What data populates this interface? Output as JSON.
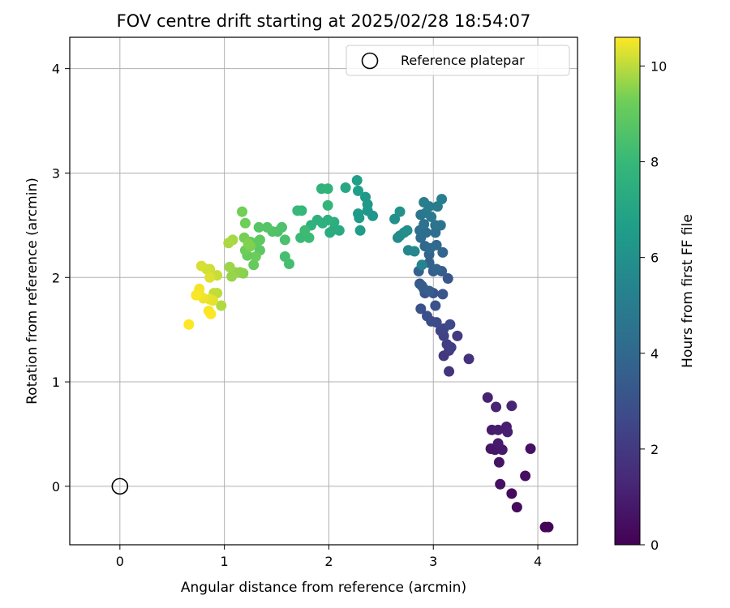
{
  "chart_data": {
    "type": "scatter",
    "title": "FOV centre drift starting at 2025/02/28 18:54:07",
    "xlabel": "Angular distance from reference (arcmin)",
    "ylabel": "Rotation from reference (arcmin)",
    "xlim": [
      -0.48,
      4.38
    ],
    "ylim": [
      -0.56,
      4.3
    ],
    "xticks": [
      0,
      1,
      2,
      3,
      4
    ],
    "yticks": [
      0,
      1,
      2,
      3,
      4
    ],
    "grid": true,
    "legend": {
      "placement": "top-right",
      "label": "Reference platepar"
    },
    "reference_point": {
      "x": 0,
      "y": 0
    },
    "colorbar": {
      "label": "Hours from first FF file",
      "range": [
        0,
        10.6
      ],
      "ticks": [
        0,
        2,
        4,
        6,
        8,
        10
      ],
      "colormap": "viridis"
    },
    "points": [
      [
        4.07,
        -0.39,
        0.1
      ],
      [
        4.1,
        -0.39,
        0.15
      ],
      [
        3.8,
        -0.2,
        0.3
      ],
      [
        3.75,
        -0.07,
        0.35
      ],
      [
        3.88,
        0.1,
        0.45
      ],
      [
        3.64,
        0.02,
        0.5
      ],
      [
        3.93,
        0.36,
        0.55
      ],
      [
        3.63,
        0.23,
        0.6
      ],
      [
        3.55,
        0.36,
        0.7
      ],
      [
        3.59,
        0.35,
        0.75
      ],
      [
        3.66,
        0.35,
        0.8
      ],
      [
        3.62,
        0.41,
        0.85
      ],
      [
        3.56,
        0.54,
        0.9
      ],
      [
        3.62,
        0.54,
        0.95
      ],
      [
        3.7,
        0.57,
        1.0
      ],
      [
        3.71,
        0.52,
        1.05
      ],
      [
        3.52,
        0.85,
        1.1
      ],
      [
        3.6,
        0.76,
        1.2
      ],
      [
        3.75,
        0.77,
        1.25
      ],
      [
        3.34,
        1.22,
        1.7
      ],
      [
        3.15,
        1.1,
        1.8
      ],
      [
        3.1,
        1.25,
        1.9
      ],
      [
        3.23,
        1.44,
        2.0
      ],
      [
        3.15,
        1.3,
        2.05
      ],
      [
        3.13,
        1.36,
        2.1
      ],
      [
        3.17,
        1.33,
        2.2
      ],
      [
        3.1,
        1.44,
        2.3
      ],
      [
        3.07,
        1.49,
        2.4
      ],
      [
        3.1,
        1.51,
        2.5
      ],
      [
        3.16,
        1.55,
        2.6
      ],
      [
        3.03,
        1.57,
        2.7
      ],
      [
        2.98,
        1.58,
        2.8
      ],
      [
        2.94,
        1.63,
        2.85
      ],
      [
        2.88,
        1.7,
        2.9
      ],
      [
        3.02,
        1.73,
        3.0
      ],
      [
        2.92,
        1.85,
        3.05
      ],
      [
        3.0,
        1.85,
        3.1
      ],
      [
        3.09,
        1.84,
        3.15
      ],
      [
        3.14,
        1.99,
        3.2
      ],
      [
        2.87,
        1.94,
        3.3
      ],
      [
        2.89,
        1.92,
        3.4
      ],
      [
        2.91,
        1.89,
        3.45
      ],
      [
        2.96,
        1.87,
        3.5
      ],
      [
        3.08,
        2.06,
        3.55
      ],
      [
        3.0,
        2.06,
        3.6
      ],
      [
        2.86,
        2.06,
        3.7
      ],
      [
        2.96,
        2.14,
        3.75
      ],
      [
        3.03,
        2.08,
        3.8
      ],
      [
        2.96,
        2.22,
        3.85
      ],
      [
        3.09,
        2.24,
        3.9
      ],
      [
        3.03,
        2.31,
        4.0
      ],
      [
        2.92,
        2.3,
        4.05
      ],
      [
        2.97,
        2.28,
        4.1
      ],
      [
        2.88,
        2.38,
        4.2
      ],
      [
        2.93,
        2.43,
        4.25
      ],
      [
        3.02,
        2.43,
        4.3
      ],
      [
        2.87,
        2.45,
        4.4
      ],
      [
        2.91,
        2.51,
        4.5
      ],
      [
        3.02,
        2.5,
        4.55
      ],
      [
        3.07,
        2.5,
        4.6
      ],
      [
        2.88,
        2.6,
        4.7
      ],
      [
        2.93,
        2.62,
        4.75
      ],
      [
        2.98,
        2.58,
        4.85
      ],
      [
        3.04,
        2.68,
        4.95
      ],
      [
        2.96,
        2.68,
        5.0
      ],
      [
        2.91,
        2.72,
        5.05
      ],
      [
        3.08,
        2.75,
        5.15
      ],
      [
        2.89,
        2.12,
        5.4
      ],
      [
        2.76,
        2.26,
        5.55
      ],
      [
        2.82,
        2.25,
        5.6
      ],
      [
        2.66,
        2.38,
        5.7
      ],
      [
        2.68,
        2.4,
        5.75
      ],
      [
        2.72,
        2.43,
        5.8
      ],
      [
        2.75,
        2.45,
        5.85
      ],
      [
        2.63,
        2.56,
        5.95
      ],
      [
        2.68,
        2.63,
        6.05
      ],
      [
        2.42,
        2.59,
        6.25
      ],
      [
        2.37,
        2.64,
        6.3
      ],
      [
        2.37,
        2.7,
        6.35
      ],
      [
        2.35,
        2.77,
        6.4
      ],
      [
        2.28,
        2.61,
        6.5
      ],
      [
        2.29,
        2.57,
        6.55
      ],
      [
        2.3,
        2.45,
        6.6
      ],
      [
        2.28,
        2.83,
        6.7
      ],
      [
        2.27,
        2.93,
        6.75
      ],
      [
        2.16,
        2.86,
        7.1
      ],
      [
        2.1,
        2.45,
        7.2
      ],
      [
        2.05,
        2.46,
        7.3
      ],
      [
        2.01,
        2.43,
        7.35
      ],
      [
        2.05,
        2.53,
        7.45
      ],
      [
        1.99,
        2.55,
        7.5
      ],
      [
        1.94,
        2.52,
        7.55
      ],
      [
        1.89,
        2.55,
        7.6
      ],
      [
        1.83,
        2.5,
        7.65
      ],
      [
        1.93,
        2.85,
        7.7
      ],
      [
        1.99,
        2.85,
        7.75
      ],
      [
        1.99,
        2.69,
        7.8
      ],
      [
        1.74,
        2.64,
        7.9
      ],
      [
        1.7,
        2.64,
        8.0
      ],
      [
        1.73,
        2.38,
        8.05
      ],
      [
        1.81,
        2.38,
        8.1
      ],
      [
        1.77,
        2.45,
        8.15
      ],
      [
        1.62,
        2.13,
        8.3
      ],
      [
        1.58,
        2.2,
        8.35
      ],
      [
        1.58,
        2.36,
        8.45
      ],
      [
        1.55,
        2.48,
        8.5
      ],
      [
        1.51,
        2.44,
        8.55
      ],
      [
        1.46,
        2.44,
        8.6
      ],
      [
        1.41,
        2.48,
        8.7
      ],
      [
        1.33,
        2.48,
        8.75
      ],
      [
        1.34,
        2.26,
        8.85
      ],
      [
        1.34,
        2.36,
        8.9
      ],
      [
        1.3,
        2.33,
        8.95
      ],
      [
        1.25,
        2.34,
        9.0
      ],
      [
        1.28,
        2.12,
        9.05
      ],
      [
        1.22,
        2.21,
        9.1
      ],
      [
        1.3,
        2.2,
        9.15
      ],
      [
        1.2,
        2.26,
        9.2
      ],
      [
        1.2,
        2.52,
        9.25
      ],
      [
        1.17,
        2.63,
        9.3
      ],
      [
        1.19,
        2.38,
        9.35
      ],
      [
        1.25,
        2.3,
        9.4
      ],
      [
        1.23,
        2.32,
        9.45
      ],
      [
        1.18,
        2.04,
        9.5
      ],
      [
        1.15,
        2.05,
        9.55
      ],
      [
        1.1,
        2.05,
        9.6
      ],
      [
        1.07,
        2.01,
        9.65
      ],
      [
        1.05,
        2.1,
        9.7
      ],
      [
        1.08,
        2.36,
        9.8
      ],
      [
        1.04,
        2.33,
        9.85
      ],
      [
        0.97,
        1.73,
        9.9
      ],
      [
        0.93,
        1.85,
        10.0
      ],
      [
        0.9,
        1.85,
        10.05
      ],
      [
        0.93,
        2.02,
        10.1
      ],
      [
        0.86,
        2.08,
        10.15
      ],
      [
        0.83,
        2.08,
        10.2
      ],
      [
        0.78,
        2.11,
        10.25
      ],
      [
        0.86,
        2.0,
        10.3
      ],
      [
        0.89,
        1.78,
        10.35
      ],
      [
        0.86,
        1.79,
        10.4
      ],
      [
        0.8,
        1.8,
        10.45
      ],
      [
        0.76,
        1.89,
        10.5
      ],
      [
        0.76,
        1.84,
        10.5
      ],
      [
        0.73,
        1.83,
        10.55
      ],
      [
        0.85,
        1.68,
        10.55
      ],
      [
        0.87,
        1.65,
        10.6
      ],
      [
        0.66,
        1.55,
        10.6
      ]
    ]
  }
}
